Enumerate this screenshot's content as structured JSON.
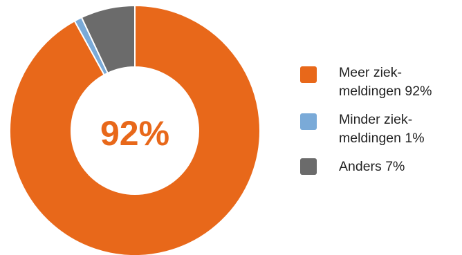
{
  "chart_data": {
    "type": "pie",
    "categories": [
      "Meer ziek-meldingen",
      "Minder ziek-meldingen",
      "Anders"
    ],
    "values": [
      92,
      1,
      7
    ],
    "center_label": "92%",
    "legend_position": "right",
    "colors": [
      "#e8681a",
      "#7aaad8",
      "#6b6b6b"
    ]
  },
  "legend": {
    "items": [
      {
        "label": "Meer ziek-meldingen 92%",
        "color": "#e8681a"
      },
      {
        "label": "Minder ziek-meldingen 1%",
        "color": "#7aaad8"
      },
      {
        "label": "Anders 7%",
        "color": "#6b6b6b"
      }
    ]
  }
}
